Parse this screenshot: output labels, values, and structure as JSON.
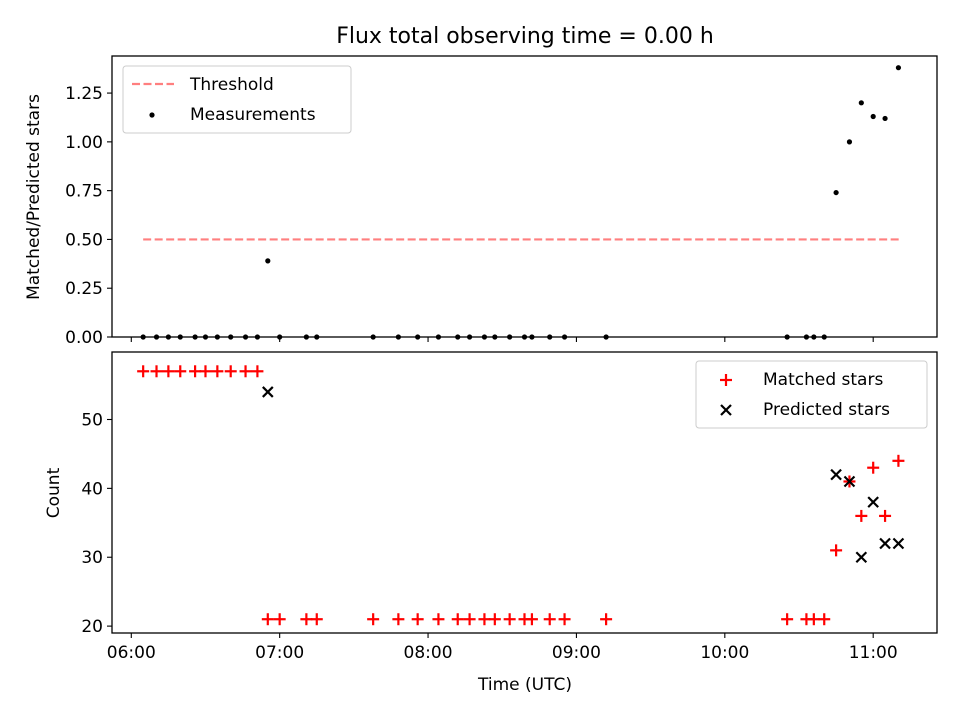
{
  "chart_data": [
    {
      "type": "scatter",
      "title": "Flux total observing time = 0.00 h",
      "xlabel": "",
      "ylabel": "Matched/Predicted stars",
      "xlim": [
        5.87,
        11.43
      ],
      "ylim": [
        0.0,
        1.44
      ],
      "y_ticks": [
        0.0,
        0.25,
        0.5,
        0.75,
        1.0,
        1.25
      ],
      "y_tick_labels": [
        "0.00",
        "0.25",
        "0.50",
        "0.75",
        "1.00",
        "1.25"
      ],
      "x_ticks": [
        6,
        7,
        8,
        9,
        10,
        11
      ],
      "legend": {
        "placement": "upper left",
        "entries": [
          "Threshold",
          "Measurements"
        ]
      },
      "threshold": {
        "name": "Threshold",
        "color": "#ff7f7f",
        "y": 0.5,
        "x_range": [
          6.08,
          11.18
        ]
      },
      "series": [
        {
          "name": "Measurements",
          "color": "#000000",
          "x": [
            6.08,
            6.17,
            6.25,
            6.33,
            6.43,
            6.5,
            6.58,
            6.67,
            6.77,
            6.85,
            6.92,
            7.0,
            7.18,
            7.25,
            7.63,
            7.8,
            7.93,
            8.07,
            8.2,
            8.28,
            8.38,
            8.45,
            8.55,
            8.65,
            8.7,
            8.82,
            8.92,
            9.2,
            10.42,
            10.55,
            10.6,
            10.67,
            10.75,
            10.84,
            10.92,
            11.0,
            11.08,
            11.17
          ],
          "y": [
            0,
            0,
            0,
            0,
            0,
            0,
            0,
            0,
            0,
            0,
            0.39,
            0,
            0,
            0,
            0,
            0,
            0,
            0,
            0,
            0,
            0,
            0,
            0,
            0,
            0,
            0,
            0,
            0,
            0,
            0,
            0,
            0,
            0.74,
            1.0,
            1.2,
            1.13,
            1.12,
            1.38
          ]
        }
      ]
    },
    {
      "type": "scatter",
      "title": "",
      "xlabel": "Time (UTC)",
      "ylabel": "Count",
      "xlim": [
        5.87,
        11.43
      ],
      "ylim": [
        19.0,
        59.8
      ],
      "y_ticks": [
        20,
        30,
        40,
        50
      ],
      "y_tick_labels": [
        "20",
        "30",
        "40",
        "50"
      ],
      "x_ticks": [
        6,
        7,
        8,
        9,
        10,
        11
      ],
      "x_tick_labels": [
        "06:00",
        "07:00",
        "08:00",
        "09:00",
        "10:00",
        "11:00"
      ],
      "legend": {
        "placement": "upper right",
        "entries": [
          "Matched stars",
          "Predicted stars"
        ]
      },
      "series": [
        {
          "name": "Matched stars",
          "marker": "+",
          "color": "#ff0000",
          "x": [
            6.08,
            6.17,
            6.25,
            6.33,
            6.43,
            6.5,
            6.58,
            6.67,
            6.77,
            6.85,
            6.92,
            7.0,
            7.18,
            7.25,
            7.63,
            7.8,
            7.93,
            8.07,
            8.2,
            8.28,
            8.38,
            8.45,
            8.55,
            8.65,
            8.7,
            8.82,
            8.92,
            9.2,
            10.42,
            10.55,
            10.6,
            10.67,
            10.75,
            10.84,
            10.92,
            11.0,
            11.08,
            11.17
          ],
          "y": [
            57,
            57,
            57,
            57,
            57,
            57,
            57,
            57,
            57,
            57,
            21,
            21,
            21,
            21,
            21,
            21,
            21,
            21,
            21,
            21,
            21,
            21,
            21,
            21,
            21,
            21,
            21,
            21,
            21,
            21,
            21,
            21,
            31,
            41,
            36,
            43,
            36,
            44
          ]
        },
        {
          "name": "Predicted stars",
          "marker": "x",
          "color": "#000000",
          "x": [
            6.92,
            10.75,
            10.84,
            10.92,
            11.0,
            11.08,
            11.17
          ],
          "y": [
            54,
            42,
            41,
            30,
            38,
            32,
            32
          ]
        }
      ]
    }
  ]
}
